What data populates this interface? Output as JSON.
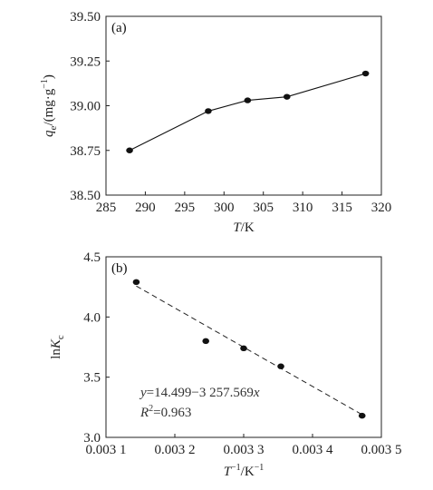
{
  "chart_data": [
    {
      "type": "line",
      "panel_label": "(a)",
      "xlabel": "T/K",
      "ylabel": "qe/(mg·g⁻¹)",
      "xlim": [
        285,
        320
      ],
      "ylim": [
        38.5,
        39.5
      ],
      "xticks": [
        "285",
        "290",
        "295",
        "300",
        "305",
        "310",
        "315",
        "320"
      ],
      "yticks": [
        "38.50",
        "38.75",
        "39.00",
        "39.25",
        "39.50"
      ],
      "series": [
        {
          "x": [
            288,
            298,
            303,
            308,
            318
          ],
          "values": [
            38.75,
            38.97,
            39.03,
            39.05,
            39.18
          ]
        }
      ]
    },
    {
      "type": "scatter",
      "panel_label": "(b)",
      "xlabel": "T⁻¹/K⁻¹",
      "ylabel": "lnKc",
      "xlim": [
        0.0031,
        0.0035
      ],
      "ylim": [
        3.0,
        4.5
      ],
      "xticks": [
        "0.003 1",
        "0.003 2",
        "0.003 3",
        "0.003 4",
        "0.003 5"
      ],
      "yticks": [
        "3.0",
        "3.5",
        "4.0",
        "4.5"
      ],
      "series": [
        {
          "x": [
            0.003144,
            0.003245,
            0.0033,
            0.003354,
            0.003472
          ],
          "values": [
            4.29,
            3.8,
            3.74,
            3.59,
            3.18
          ]
        }
      ],
      "fit": {
        "intercept": 14.499,
        "slope": -3257.569,
        "style": "dashed"
      },
      "equation": "y=14.499−3 257.569x",
      "r2": "R²=0.963"
    }
  ]
}
